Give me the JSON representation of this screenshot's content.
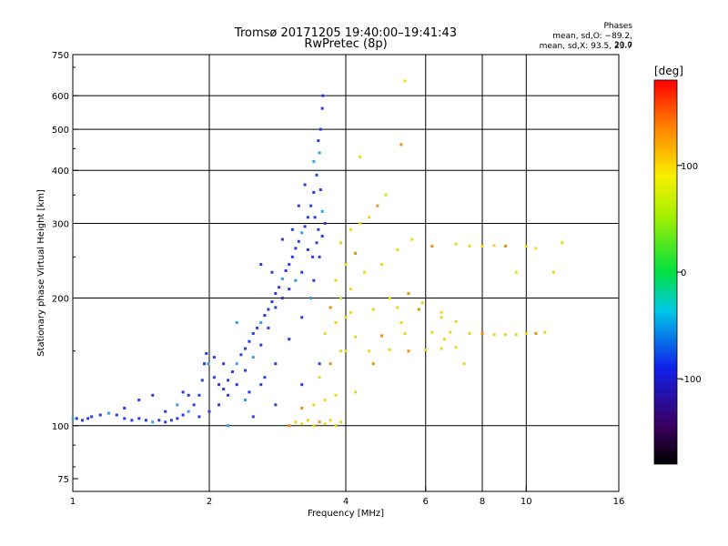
{
  "header": {
    "title_line1": "Tromsø 20171205 19:40:00–19:41:43",
    "title_line2": "RwPretec (8p)",
    "stats_title": "Phases",
    "stats_line1": "mean, sd,O: −89.2, 20.0",
    "stats_line2": "mean, sd,X:  93.5, 23.7"
  },
  "chart_data": {
    "type": "scatter",
    "xlabel": "Frequency [MHz]",
    "ylabel": "Stationary phase Virtual Height [km]",
    "x_scale": "log",
    "y_scale": "log",
    "xlim": [
      1,
      16
    ],
    "ylim": [
      70,
      750
    ],
    "x_ticks": [
      1,
      2,
      4,
      6,
      8,
      10,
      16
    ],
    "x_tick_labels": [
      "1",
      "2",
      "4",
      "6",
      "8",
      "10",
      "16"
    ],
    "x_grid": [
      2,
      4,
      6,
      8,
      10
    ],
    "y_ticks": [
      75,
      100,
      200,
      300,
      400,
      500,
      600,
      750
    ],
    "y_tick_labels": [
      "75",
      "100",
      "200",
      "300",
      "400",
      "500",
      "600",
      "750"
    ],
    "y_grid": [
      100,
      200,
      300,
      400,
      500,
      600
    ],
    "grid": true,
    "colorbar": {
      "label": "[deg]",
      "range": [
        -180,
        180
      ],
      "ticks": [
        100,
        0,
        -100
      ],
      "tick_labels": [
        "100",
        "0",
        "-100"
      ]
    },
    "colors": {
      "O_mode": "#2a3ce0",
      "O_light": "#2fa0e8",
      "X_mode": "#e8d81a",
      "X_orange": "#f08a10"
    },
    "series": [
      {
        "mode": "O",
        "phase_mean": -89.2,
        "phase_sd": 20.0,
        "points": [
          [
            1.0,
            104
          ],
          [
            1.02,
            104
          ],
          [
            1.05,
            103
          ],
          [
            1.08,
            104
          ],
          [
            1.1,
            105
          ],
          [
            1.15,
            106
          ],
          [
            1.2,
            107
          ],
          [
            1.25,
            106
          ],
          [
            1.3,
            104
          ],
          [
            1.35,
            103
          ],
          [
            1.4,
            104
          ],
          [
            1.45,
            103
          ],
          [
            1.5,
            102
          ],
          [
            1.55,
            103
          ],
          [
            1.6,
            102
          ],
          [
            1.65,
            103
          ],
          [
            1.7,
            104
          ],
          [
            1.75,
            106
          ],
          [
            1.8,
            108
          ],
          [
            1.85,
            112
          ],
          [
            1.9,
            118
          ],
          [
            1.93,
            128
          ],
          [
            1.95,
            140
          ],
          [
            1.97,
            148
          ],
          [
            1.99,
            140
          ],
          [
            2.05,
            130
          ],
          [
            2.1,
            125
          ],
          [
            2.15,
            122
          ],
          [
            2.2,
            128
          ],
          [
            2.25,
            134
          ],
          [
            2.3,
            140
          ],
          [
            2.35,
            147
          ],
          [
            2.4,
            152
          ],
          [
            2.45,
            158
          ],
          [
            2.5,
            165
          ],
          [
            2.55,
            170
          ],
          [
            2.6,
            175
          ],
          [
            2.65,
            182
          ],
          [
            2.7,
            188
          ],
          [
            2.75,
            196
          ],
          [
            2.8,
            205
          ],
          [
            2.85,
            212
          ],
          [
            2.9,
            222
          ],
          [
            2.95,
            232
          ],
          [
            3.0,
            240
          ],
          [
            3.05,
            250
          ],
          [
            3.1,
            262
          ],
          [
            3.15,
            272
          ],
          [
            3.2,
            285
          ],
          [
            3.25,
            295
          ],
          [
            3.3,
            310
          ],
          [
            3.35,
            330
          ],
          [
            3.4,
            355
          ],
          [
            3.45,
            390
          ],
          [
            3.5,
            440
          ],
          [
            3.52,
            500
          ],
          [
            3.55,
            560
          ],
          [
            3.56,
            600
          ],
          [
            3.5,
            250
          ],
          [
            3.45,
            270
          ],
          [
            3.55,
            320
          ],
          [
            3.48,
            290
          ],
          [
            3.52,
            360
          ],
          [
            3.42,
            310
          ],
          [
            3.3,
            260
          ],
          [
            3.2,
            230
          ],
          [
            3.1,
            220
          ],
          [
            3.0,
            210
          ],
          [
            2.9,
            200
          ],
          [
            2.8,
            190
          ],
          [
            2.7,
            170
          ],
          [
            2.6,
            155
          ],
          [
            2.5,
            145
          ],
          [
            2.4,
            135
          ],
          [
            2.3,
            125
          ],
          [
            2.2,
            118
          ],
          [
            2.1,
            112
          ],
          [
            2.0,
            108
          ],
          [
            2.4,
            115
          ],
          [
            2.6,
            125
          ],
          [
            2.8,
            140
          ],
          [
            3.0,
            160
          ],
          [
            3.2,
            180
          ],
          [
            3.4,
            220
          ],
          [
            2.2,
            100
          ],
          [
            2.5,
            105
          ],
          [
            2.8,
            112
          ],
          [
            3.2,
            125
          ],
          [
            3.5,
            140
          ],
          [
            1.6,
            108
          ],
          [
            1.7,
            112
          ],
          [
            1.8,
            118
          ],
          [
            2.6,
            240
          ],
          [
            2.9,
            275
          ],
          [
            3.15,
            330
          ],
          [
            3.25,
            370
          ],
          [
            3.4,
            420
          ],
          [
            3.48,
            470
          ],
          [
            1.4,
            115
          ],
          [
            1.5,
            118
          ],
          [
            1.75,
            120
          ],
          [
            2.05,
            145
          ],
          [
            2.3,
            175
          ],
          [
            3.05,
            290
          ],
          [
            1.3,
            110
          ],
          [
            1.9,
            105
          ],
          [
            2.15,
            140
          ],
          [
            2.75,
            230
          ],
          [
            3.35,
            200
          ],
          [
            3.55,
            280
          ],
          [
            3.38,
            250
          ],
          [
            3.6,
            300
          ],
          [
            2.45,
            120
          ],
          [
            2.65,
            130
          ]
        ]
      },
      {
        "mode": "X",
        "phase_mean": 93.5,
        "phase_sd": 23.7,
        "points": [
          [
            3.0,
            100
          ],
          [
            3.1,
            102
          ],
          [
            3.2,
            101
          ],
          [
            3.3,
            103
          ],
          [
            3.4,
            100
          ],
          [
            3.5,
            102
          ],
          [
            3.6,
            101
          ],
          [
            3.7,
            103
          ],
          [
            3.8,
            100
          ],
          [
            3.9,
            102
          ],
          [
            3.2,
            110
          ],
          [
            3.4,
            112
          ],
          [
            3.6,
            115
          ],
          [
            3.8,
            118
          ],
          [
            3.5,
            130
          ],
          [
            3.7,
            140
          ],
          [
            3.9,
            150
          ],
          [
            3.6,
            165
          ],
          [
            3.8,
            175
          ],
          [
            4.0,
            180
          ],
          [
            3.7,
            190
          ],
          [
            3.9,
            200
          ],
          [
            4.1,
            210
          ],
          [
            3.8,
            220
          ],
          [
            4.0,
            240
          ],
          [
            4.2,
            255
          ],
          [
            3.9,
            270
          ],
          [
            4.1,
            290
          ],
          [
            4.3,
            300
          ],
          [
            4.5,
            310
          ],
          [
            4.7,
            330
          ],
          [
            4.9,
            350
          ],
          [
            4.0,
            150
          ],
          [
            4.5,
            150
          ],
          [
            5.0,
            151
          ],
          [
            5.5,
            150
          ],
          [
            6.0,
            151
          ],
          [
            6.5,
            152
          ],
          [
            7.0,
            153
          ],
          [
            4.2,
            162
          ],
          [
            4.8,
            163
          ],
          [
            5.4,
            165
          ],
          [
            6.2,
            166
          ],
          [
            6.8,
            166
          ],
          [
            7.5,
            165
          ],
          [
            8.0,
            165
          ],
          [
            8.5,
            164
          ],
          [
            9.0,
            164
          ],
          [
            9.5,
            164
          ],
          [
            10.0,
            165
          ],
          [
            10.5,
            165
          ],
          [
            11.0,
            166
          ],
          [
            4.1,
            185
          ],
          [
            4.6,
            188
          ],
          [
            5.2,
            190
          ],
          [
            5.8,
            188
          ],
          [
            6.5,
            180
          ],
          [
            7.0,
            176
          ],
          [
            6.5,
            185
          ],
          [
            5.0,
            200
          ],
          [
            5.5,
            205
          ],
          [
            4.4,
            230
          ],
          [
            4.8,
            240
          ],
          [
            5.2,
            260
          ],
          [
            5.6,
            275
          ],
          [
            6.2,
            265
          ],
          [
            7.0,
            268
          ],
          [
            7.5,
            265
          ],
          [
            8.0,
            265
          ],
          [
            8.5,
            266
          ],
          [
            9.0,
            265
          ],
          [
            10.0,
            265
          ],
          [
            10.5,
            262
          ],
          [
            12.0,
            270
          ],
          [
            4.2,
            120
          ],
          [
            4.6,
            140
          ],
          [
            5.3,
            175
          ],
          [
            5.9,
            195
          ],
          [
            6.6,
            160
          ],
          [
            7.3,
            140
          ],
          [
            5.3,
            460
          ],
          [
            5.4,
            650
          ],
          [
            4.3,
            430
          ],
          [
            9.5,
            230
          ],
          [
            11.5,
            230
          ]
        ]
      }
    ]
  }
}
